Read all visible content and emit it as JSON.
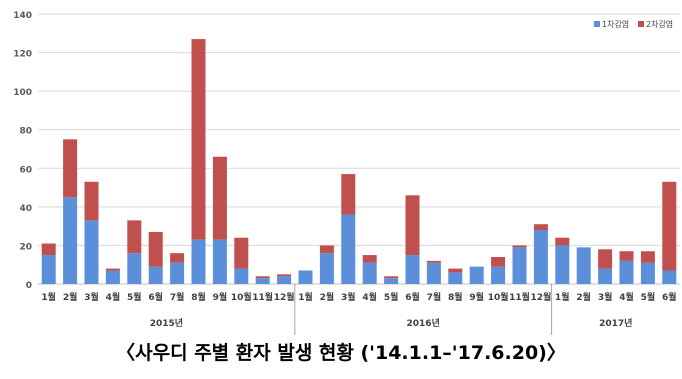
{
  "caption": "〈사우디 주별 환자 발생 현황 ('14.1.1–'17.6.20)〉",
  "chart_data": {
    "type": "bar",
    "stacked": true,
    "ylim": [
      0,
      140
    ],
    "yticks": [
      0,
      20,
      40,
      60,
      80,
      100,
      120,
      140
    ],
    "grid": true,
    "legend_position": "top-right",
    "categories": [
      "1월",
      "2월",
      "3월",
      "4월",
      "5월",
      "6월",
      "7월",
      "8월",
      "9월",
      "10월",
      "11월",
      "12월",
      "1월",
      "2월",
      "3월",
      "4월",
      "5월",
      "6월",
      "7월",
      "8월",
      "9월",
      "10월",
      "11월",
      "12월",
      "1월",
      "2월",
      "3월",
      "4월",
      "5월",
      "6월"
    ],
    "groups": [
      {
        "label": "2015년",
        "count": 12
      },
      {
        "label": "2016년",
        "count": 12
      },
      {
        "label": "2017년",
        "count": 6
      }
    ],
    "series": [
      {
        "name": "1차감염",
        "color": "#5b8fd9",
        "values": [
          15,
          45,
          33,
          7,
          16,
          9,
          11,
          23,
          23,
          8,
          3,
          4,
          7,
          16,
          36,
          11,
          3,
          15,
          11,
          6,
          9,
          9,
          19,
          28,
          20,
          19,
          8,
          12,
          11,
          7
        ]
      },
      {
        "name": "2차감염",
        "color": "#c0504d",
        "values": [
          6,
          30,
          20,
          1,
          17,
          18,
          5,
          104,
          43,
          16,
          1,
          1,
          0,
          4,
          21,
          4,
          1,
          31,
          1,
          2,
          0,
          5,
          1,
          3,
          4,
          0,
          10,
          5,
          6,
          46
        ]
      }
    ]
  }
}
